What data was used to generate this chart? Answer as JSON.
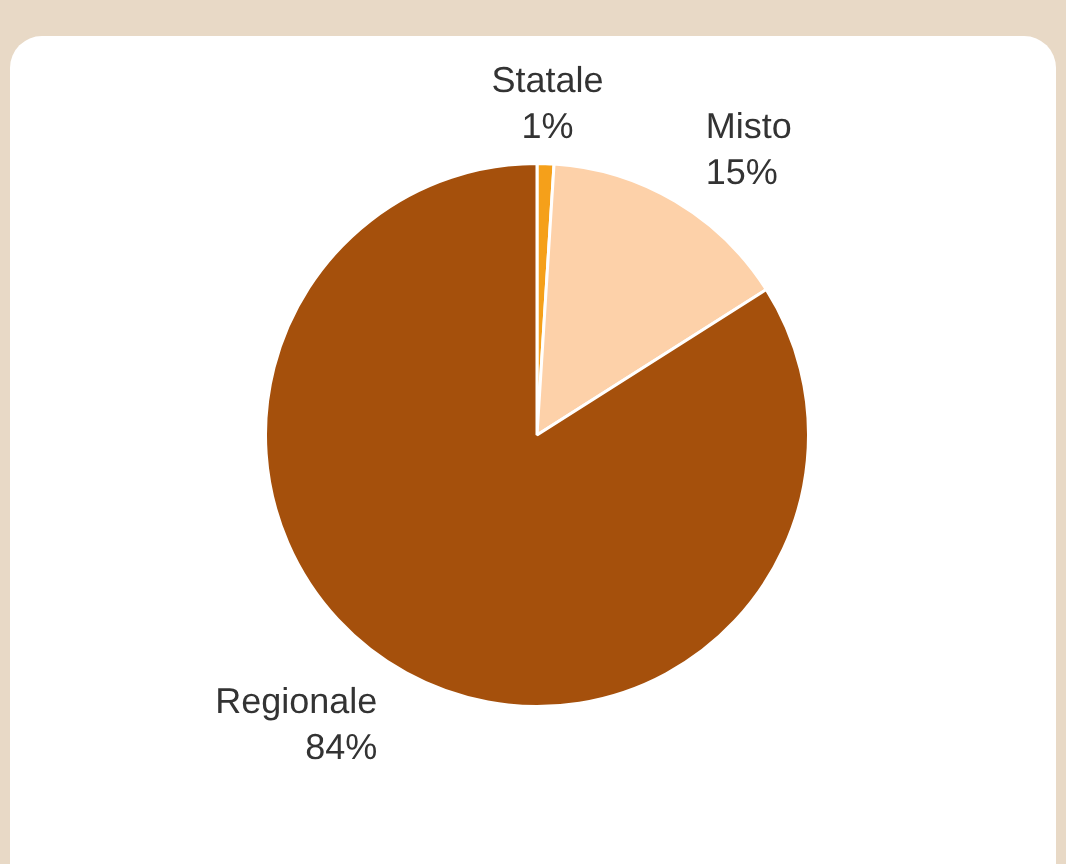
{
  "chart_data": {
    "type": "pie",
    "categories": [
      "Statale",
      "Misto",
      "Regionale"
    ],
    "values": [
      1,
      15,
      84
    ],
    "value_labels": [
      "1%",
      "15%",
      "84%"
    ],
    "colors": [
      "#f5a01a",
      "#fdd1a9",
      "#a5500c"
    ],
    "legend": false
  }
}
